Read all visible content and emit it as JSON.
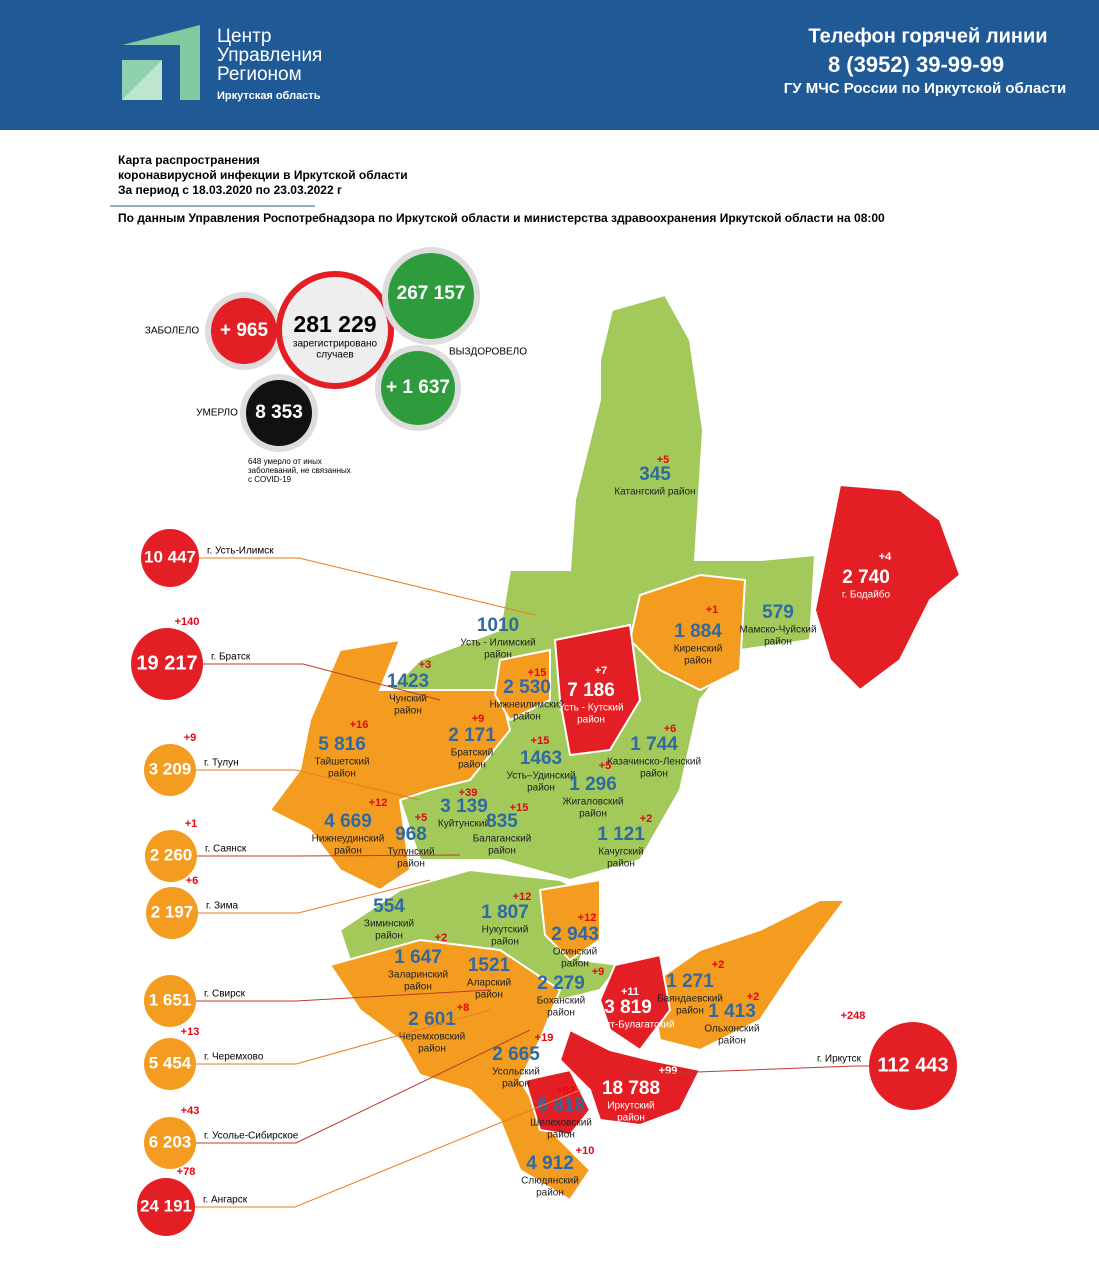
{
  "header": {
    "logo": [
      "Центр",
      "Управления",
      "Регионом"
    ],
    "region": "Иркутская область",
    "hotline_title": "Телефон горячей линии",
    "phone": "8 (3952) 39-99-99",
    "org": "ГУ МЧС России по Иркутской области"
  },
  "intro": {
    "lines": [
      "Карта распространения",
      "коронавирусной инфекции в Иркутской области",
      "За период с 18.03.2020 по 23.03.2022 г"
    ],
    "source": "По данным Управления Роспотребнадзора по Иркутской области и министерства здравоохранения Иркутской области на 08:00"
  },
  "stats": {
    "sick_label": "ЗАБОЛЕЛО",
    "sick_new": "+ 965",
    "total": "281 229",
    "total_caption": [
      "зарегистрировано",
      "случаев"
    ],
    "recovered": "267 157",
    "recovered_label": "ВЫЗДОРОВЕЛО",
    "recovered_new": "+ 1 637",
    "died_label": "УМЕРЛО",
    "died": "8 353",
    "note": [
      "648 умерло от иных",
      "заболеваний, не связанных",
      "с COVID-19"
    ]
  },
  "districts": [
    {
      "value": "345",
      "delta": "+5",
      "name": [
        "Катангский район"
      ]
    },
    {
      "value": "1010",
      "name": [
        "Усть - Илимский",
        "район"
      ]
    },
    {
      "value": "2 740",
      "delta": "+4",
      "name": [
        "г. Бодайбо"
      ]
    },
    {
      "value": "1 884",
      "delta": "+1",
      "name": [
        "Киренский",
        "район"
      ]
    },
    {
      "value": "579",
      "name": [
        "Мамско-Чуйский",
        "район"
      ]
    },
    {
      "value": "1423",
      "delta": "+3",
      "name": [
        "Чунский",
        "район"
      ]
    },
    {
      "value": "2 530",
      "delta": "+15",
      "name": [
        "Нижнеилимский",
        "район"
      ]
    },
    {
      "value": "7 186",
      "delta": "+7",
      "name": [
        "Усть - Кутский",
        "район"
      ]
    },
    {
      "value": "2 171",
      "delta": "+9",
      "name": [
        "Братский",
        "район"
      ]
    },
    {
      "value": "5 816",
      "delta": "+16",
      "name": [
        "Тайшетский",
        "район"
      ]
    },
    {
      "value": "1 744",
      "delta": "+6",
      "name": [
        "Казачинско-Ленский",
        "район"
      ]
    },
    {
      "value": "1463",
      "delta": "+15",
      "name": [
        "Усть–Удинский",
        "район"
      ]
    },
    {
      "value": "1 296",
      "delta": "+5",
      "name": [
        "Жигаловский",
        "район"
      ]
    },
    {
      "value": "4 669",
      "delta": "+12",
      "name": [
        "Нижнеудинский",
        "район"
      ]
    },
    {
      "value": "3 139",
      "delta": "+39",
      "name": [
        "Куйтунский"
      ]
    },
    {
      "value": "968",
      "delta": "+5",
      "name": [
        "Тулунский",
        "район"
      ]
    },
    {
      "value": "835",
      "delta": "+15",
      "name": [
        "Балаганский",
        "район"
      ]
    },
    {
      "value": "1 121",
      "delta": "+2",
      "name": [
        "Качугский",
        "район"
      ]
    },
    {
      "value": "554",
      "name": [
        "Зиминский",
        "район"
      ]
    },
    {
      "value": "1 807",
      "delta": "+12",
      "name": [
        "Нукутский",
        "район"
      ]
    },
    {
      "value": "2 943",
      "delta": "+12",
      "name": [
        "Осинский",
        "район"
      ]
    },
    {
      "value": "1 647",
      "delta": "+2",
      "name": [
        "Заларинский",
        "район"
      ]
    },
    {
      "value": "1521",
      "name": [
        "Аларский",
        "район"
      ]
    },
    {
      "value": "1 271",
      "delta": "+2",
      "name": [
        "Баяндаевский",
        "район"
      ]
    },
    {
      "value": "2 279",
      "delta": "+9",
      "name": [
        "Боханский",
        "район"
      ]
    },
    {
      "value": "1 413",
      "delta": "+2",
      "name": [
        "Ольхонский",
        "район"
      ]
    },
    {
      "value": "3 819",
      "delta": "+11",
      "name": [
        "Эхирит-Булагатский"
      ]
    },
    {
      "value": "2 601",
      "delta": "+8",
      "name": [
        "Черемховский",
        "район"
      ]
    },
    {
      "value": "2 665",
      "delta": "+19",
      "name": [
        "Усольский",
        "район"
      ]
    },
    {
      "value": "18 788",
      "delta": "+99",
      "name": [
        "Иркутский",
        "район"
      ]
    },
    {
      "value": "6 818",
      "delta": "+82",
      "name": [
        "Шелеховский",
        "район"
      ]
    },
    {
      "value": "4 912",
      "delta": "+10",
      "name": [
        "Слюдянский",
        "район"
      ]
    }
  ],
  "cities": [
    {
      "value": "10 447",
      "name": "г. Усть-Илимск"
    },
    {
      "value": "19 217",
      "delta": "+140",
      "name": "г. Братск"
    },
    {
      "value": "3 209",
      "delta": "+9",
      "name": "г. Тулун"
    },
    {
      "value": "2 260",
      "delta": "+1",
      "name": "г. Саянск"
    },
    {
      "value": "2 197",
      "delta": "+6",
      "name": "г. Зима"
    },
    {
      "value": "1 651",
      "name": "г. Свирск"
    },
    {
      "value": "5 454",
      "delta": "+13",
      "name": "г. Черемхово"
    },
    {
      "value": "6 203",
      "delta": "+43",
      "name": "г. Усолье-Сибирское"
    },
    {
      "value": "24 191",
      "delta": "+78",
      "name": "г. Ангарск"
    },
    {
      "value": "112 443",
      "delta": "+248",
      "name": "г. Иркутск"
    }
  ]
}
